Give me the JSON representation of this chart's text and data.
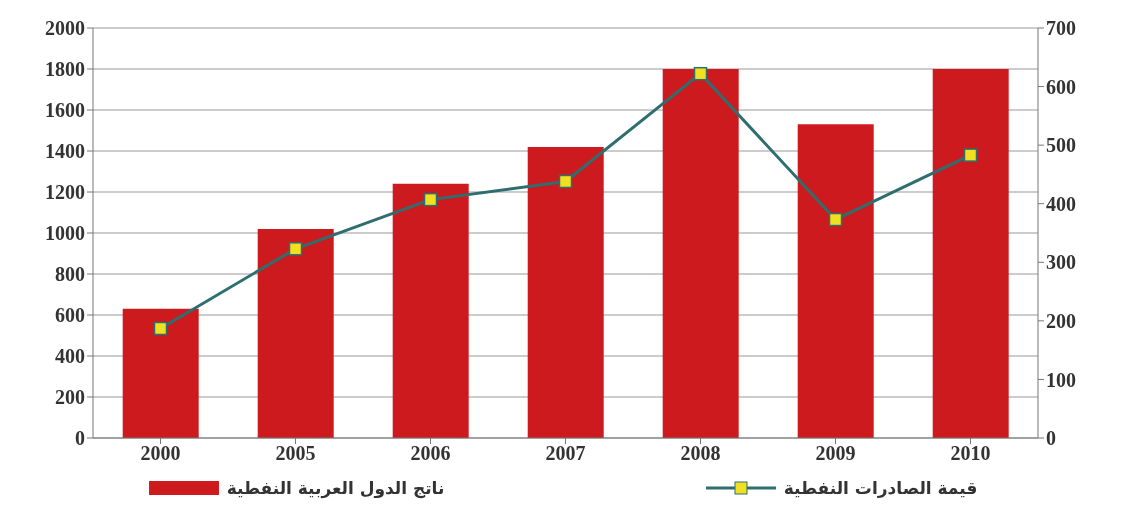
{
  "chart_data": {
    "type": "bar",
    "categories": [
      "2000",
      "2005",
      "2006",
      "2007",
      "2008",
      "2009",
      "2010"
    ],
    "series": [
      {
        "name": "ناتج الدول العربية النفطية",
        "color": "#cc1a1f",
        "values": [
          630,
          1020,
          1240,
          1420,
          1800,
          1530,
          1800
        ]
      },
      {
        "name": "قيمة الصادرات النفطية",
        "type": "line",
        "axis": "y2",
        "color": "#2f6e6e",
        "values": [
          187,
          323,
          407,
          438,
          622,
          373,
          483
        ]
      }
    ],
    "ylim": [
      0,
      2000
    ],
    "yticks": [
      0,
      200,
      400,
      600,
      800,
      1000,
      1200,
      1400,
      1600,
      1800,
      2000
    ],
    "y2lim": [
      0,
      700
    ],
    "y2ticks": [
      0,
      100,
      200,
      300,
      400,
      500,
      600,
      700
    ],
    "grid": "y",
    "legend": "bottom",
    "marker": "square"
  }
}
